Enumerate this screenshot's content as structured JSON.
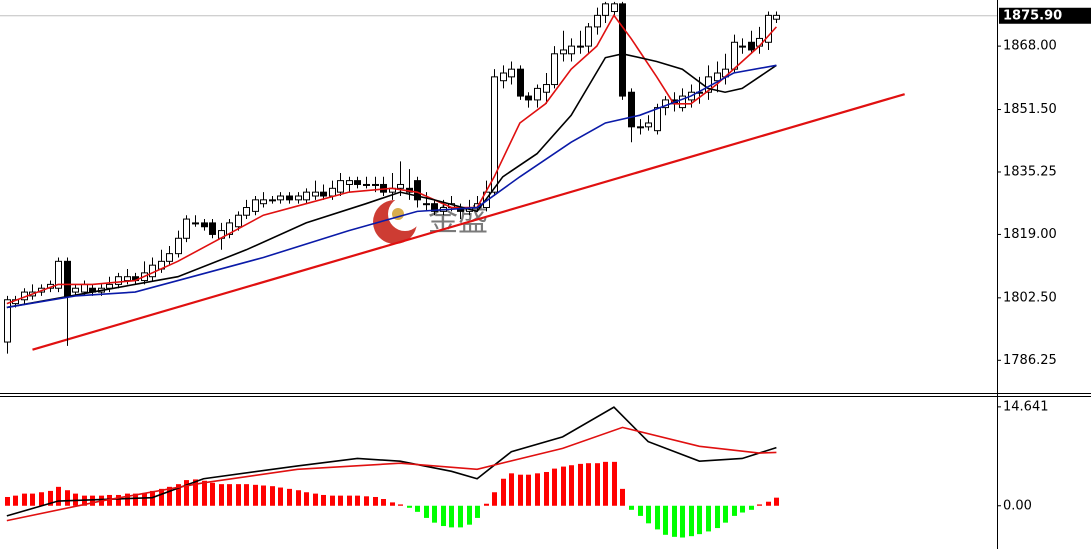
{
  "chart_data": [
    {
      "type": "candlestick",
      "watermark": "金盛",
      "xlim": [
        -0.8,
        115.8
      ],
      "ylim": [
        1778,
        1880
      ],
      "yticks": [
        1786.25,
        {
          "value": 1802.5,
          "label": "1802.50"
        },
        {
          "value": 1819,
          "label": "1819.00"
        },
        1835.25,
        {
          "value": 1851.5,
          "label": "1851.50"
        },
        {
          "value": 1868,
          "label": "1868.00"
        }
      ],
      "last_price": {
        "value": 1875.9,
        "label": "1875.90"
      },
      "up_color": "#ffffff",
      "down_color": "#000000",
      "open": [
        1791,
        1801,
        1802,
        1803,
        1804,
        1805,
        1805,
        1812,
        1804,
        1804,
        1805,
        1804,
        1805,
        1806,
        1807,
        1808,
        1807,
        1808,
        1810,
        1812,
        1814,
        1818,
        1822,
        1822,
        1822,
        1818,
        1819,
        1821,
        1824,
        1825,
        1827,
        1828,
        1828,
        1829,
        1828,
        1828,
        1829,
        1830,
        1829,
        1830,
        1832,
        1833,
        1832,
        1832,
        1832,
        1830,
        1831,
        1831,
        1833,
        1827,
        1827,
        1825,
        1826,
        1826,
        1825,
        1826,
        1826,
        1830,
        1859,
        1860,
        1862,
        1855,
        1854,
        1856,
        1858,
        1866,
        1866,
        1868,
        1868,
        1873,
        1876,
        1877,
        1879,
        1856,
        1847,
        1847,
        1846,
        1852,
        1854,
        1852,
        1854,
        1856,
        1856,
        1859,
        1860,
        1862,
        1868,
        1869,
        1868,
        1869,
        1875
      ],
      "high": [
        1803,
        1803,
        1805,
        1806,
        1806,
        1807,
        1813,
        1813,
        1806,
        1807,
        1806,
        1806,
        1808,
        1809,
        1810,
        1809,
        1812,
        1813,
        1815,
        1816,
        1820,
        1824,
        1824,
        1823,
        1823,
        1822,
        1823,
        1825,
        1828,
        1829,
        1830,
        1829,
        1830,
        1830,
        1830,
        1831,
        1833,
        1832,
        1833,
        1835,
        1834,
        1834,
        1834,
        1834,
        1834,
        1835,
        1838,
        1836,
        1834,
        1830,
        1828,
        1828,
        1829,
        1827,
        1828,
        1829,
        1833,
        1862,
        1863,
        1864,
        1863,
        1856,
        1858,
        1861,
        1868,
        1872,
        1870,
        1872,
        1874,
        1878,
        1879.5,
        1879.5,
        1879.5,
        1857,
        1849,
        1850,
        1853,
        1855,
        1856,
        1857,
        1858,
        1860,
        1863,
        1864,
        1866,
        1871,
        1870,
        1872,
        1873,
        1877,
        1877
      ],
      "low": [
        1788,
        1800,
        1801,
        1802,
        1803,
        1804,
        1804,
        1790,
        1803,
        1803,
        1803,
        1803,
        1804,
        1805,
        1806,
        1806,
        1806,
        1807,
        1809,
        1811,
        1813,
        1817,
        1821,
        1820,
        1818,
        1815,
        1818,
        1820,
        1823,
        1824,
        1826,
        1827,
        1827,
        1827,
        1827,
        1827,
        1828,
        1828,
        1828,
        1829,
        1830,
        1831,
        1831,
        1830,
        1829,
        1828,
        1829,
        1828,
        1826,
        1825,
        1824,
        1824,
        1825,
        1823,
        1824,
        1825,
        1825,
        1829,
        1857,
        1858,
        1854,
        1852,
        1852,
        1853,
        1857,
        1864,
        1864,
        1866,
        1866,
        1871,
        1874,
        1876,
        1854,
        1843,
        1845,
        1846,
        1845,
        1850,
        1851,
        1851,
        1852,
        1853,
        1854,
        1856,
        1858,
        1861,
        1866,
        1866,
        1866,
        1867,
        1874
      ],
      "close": [
        1802,
        1802,
        1804,
        1804,
        1805,
        1806,
        1812,
        1803,
        1805,
        1806,
        1804,
        1805,
        1806,
        1808,
        1808,
        1807,
        1809,
        1811,
        1812,
        1814,
        1818,
        1823,
        1822,
        1821,
        1819,
        1820,
        1822,
        1824,
        1826,
        1828,
        1828,
        1828,
        1829,
        1828,
        1829,
        1830,
        1830,
        1829,
        1831,
        1833,
        1833,
        1832,
        1832,
        1832,
        1830,
        1831,
        1832,
        1830,
        1828,
        1827,
        1825,
        1826,
        1827,
        1825,
        1826,
        1827,
        1830,
        1860,
        1861,
        1862,
        1855,
        1854,
        1857,
        1858,
        1866,
        1867,
        1868,
        1868,
        1873,
        1876,
        1879,
        1879,
        1855,
        1847,
        1847,
        1848,
        1852,
        1854,
        1853,
        1855,
        1856,
        1856,
        1860,
        1861,
        1862,
        1869,
        1868,
        1867,
        1870,
        1876,
        1876
      ],
      "lines": [
        {
          "color": "#e01010",
          "x": [
            0,
            6,
            10,
            15,
            20,
            25,
            30,
            35,
            40,
            45,
            48,
            52,
            55,
            57,
            60,
            63,
            66,
            69,
            71,
            73,
            76,
            78,
            80,
            83,
            86,
            88,
            90
          ],
          "values": [
            1801,
            1806,
            1806,
            1807,
            1812,
            1818,
            1824,
            1827,
            1830,
            1831,
            1830,
            1826,
            1826,
            1834,
            1848,
            1853,
            1862,
            1868,
            1876,
            1870,
            1860,
            1853,
            1853,
            1858,
            1864,
            1868,
            1873
          ]
        },
        {
          "color": "#000000",
          "x": [
            0,
            10,
            20,
            28,
            35,
            42,
            46,
            50,
            55,
            58,
            62,
            66,
            70,
            72,
            76,
            79,
            82,
            84,
            86,
            90
          ],
          "values": [
            1800,
            1804,
            1808,
            1815,
            1822,
            1827,
            1830,
            1828,
            1825,
            1834,
            1840,
            1850,
            1865,
            1866,
            1864,
            1862,
            1857,
            1856,
            1857,
            1863
          ]
        },
        {
          "color": "#0a1aa8",
          "x": [
            0,
            8,
            15,
            20,
            30,
            40,
            48,
            55,
            60,
            66,
            70,
            74,
            80,
            85,
            90
          ],
          "values": [
            1800,
            1803,
            1804,
            1807,
            1813,
            1820,
            1825,
            1826,
            1834,
            1843,
            1848,
            1850,
            1855,
            1861,
            1863
          ]
        }
      ],
      "trendline": {
        "color": "#e01010",
        "x": [
          3,
          105
        ],
        "values": [
          1789,
          1855.5
        ]
      }
    },
    {
      "type": "macd",
      "xlim": [
        -0.8,
        115.8
      ],
      "ylim": [
        -6.4,
        16.1
      ],
      "yticks": [
        {
          "value": 0,
          "label": "0.00"
        },
        14.641
      ],
      "pos_color": "#ff0000",
      "neg_color": "#00ff00",
      "values": [
        1.3,
        1.5,
        1.8,
        1.8,
        2,
        2.2,
        2.8,
        2.3,
        1.8,
        1.5,
        1.5,
        1.5,
        1.6,
        1.6,
        1.8,
        1.8,
        1.9,
        2.2,
        2.5,
        2.8,
        3.2,
        3.8,
        3.9,
        3.7,
        3.4,
        3.2,
        3.2,
        3.2,
        3.2,
        3.1,
        3.0,
        2.9,
        2.7,
        2.5,
        2.3,
        2.0,
        1.8,
        1.6,
        1.5,
        1.5,
        1.5,
        1.5,
        1.4,
        1.3,
        1.0,
        0.5,
        0.2,
        -0.3,
        -0.9,
        -1.8,
        -2.5,
        -3.0,
        -3.2,
        -3.2,
        -2.8,
        -1.8,
        0.3,
        2.0,
        4.0,
        4.8,
        4.6,
        4.6,
        4.8,
        5.0,
        5.5,
        5.8,
        6.0,
        6.2,
        6.3,
        6.3,
        6.5,
        6.5,
        2.5,
        -0.6,
        -1.5,
        -2.6,
        -3.5,
        -4.3,
        -4.6,
        -4.7,
        -4.5,
        -4.2,
        -3.8,
        -3.3,
        -2.5,
        -1.5,
        -1.0,
        -0.6,
        0.2,
        0.6,
        1.2
      ],
      "lines": [
        {
          "color": "#000000",
          "x": [
            0,
            6,
            17,
            23,
            34,
            41,
            46,
            52,
            55,
            59,
            65,
            71,
            75,
            81,
            86,
            90
          ],
          "values": [
            -1.5,
            0.7,
            1.2,
            4,
            5.9,
            7,
            6.6,
            5.1,
            4,
            8,
            10.2,
            14.6,
            9.5,
            6.6,
            7,
            8.6
          ]
        },
        {
          "color": "#e01010",
          "x": [
            0,
            11,
            23,
            34,
            46,
            55,
            65,
            72,
            81,
            88,
            90
          ],
          "values": [
            -2.2,
            0.7,
            3.4,
            5.4,
            6.3,
            5.4,
            8.5,
            11.6,
            8.8,
            7.8,
            7.9
          ]
        }
      ]
    }
  ]
}
